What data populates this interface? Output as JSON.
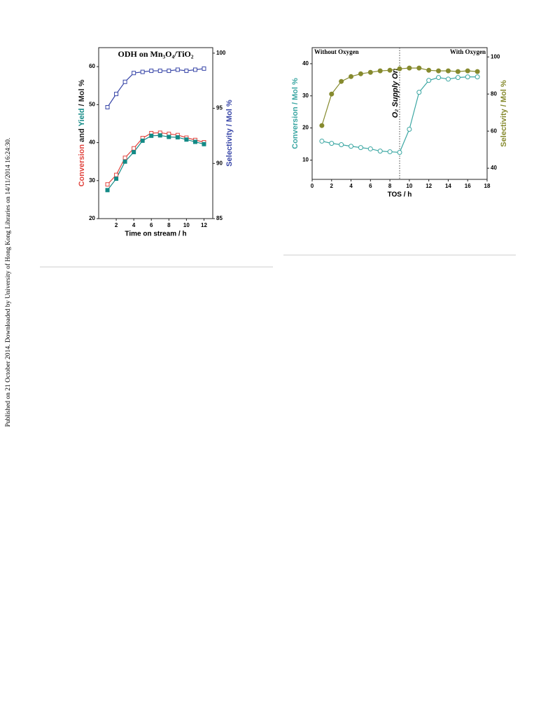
{
  "sidebar": "Published on 21 October 2014. Downloaded by University of Hong Kong Libraries on 14/11/2014 16:24:30.",
  "chart_data": [
    {
      "type": "line",
      "title": "ODH on Mn₃O₄/TiO₂",
      "xlabel": "Time on stream / h",
      "ylabel": [
        "Conversion",
        "and",
        "Yield",
        "/ Mol %"
      ],
      "y2label": "Selectivity / Mol %",
      "x": [
        1,
        2,
        3,
        4,
        5,
        6,
        7,
        8,
        9,
        10,
        11,
        12
      ],
      "xlim": [
        0,
        13
      ],
      "xticks": [
        2,
        4,
        6,
        8,
        10,
        12
      ],
      "ylim": [
        20,
        65
      ],
      "yticks": [
        20,
        30,
        40,
        50,
        60
      ],
      "y2lim": [
        85,
        100.5
      ],
      "y2ticks": [
        85,
        90,
        95,
        100
      ],
      "series": [
        {
          "name": "Conversion",
          "color": "#e0453f",
          "marker": "open-square",
          "values": [
            29,
            31.5,
            36,
            38.5,
            41.2,
            42.5,
            42.6,
            42.3,
            42,
            41.3,
            40.7,
            40.1
          ]
        },
        {
          "name": "Yield",
          "color": "#138a86",
          "marker": "filled-square",
          "values": [
            27.5,
            30.5,
            35,
            37.5,
            40.5,
            41.8,
            41.9,
            41.5,
            41.4,
            40.8,
            40.2,
            39.6
          ]
        },
        {
          "name": "Selectivity",
          "color": "#3846a8",
          "marker": "open-square",
          "axis": "y2",
          "values": [
            95.1,
            96.3,
            97.4,
            98.2,
            98.3,
            98.4,
            98.4,
            98.4,
            98.5,
            98.4,
            98.5,
            98.6
          ]
        }
      ]
    },
    {
      "type": "line",
      "xlabel": "TOS / h",
      "ylabel": "Conversion / Mol %",
      "y2label": "Selectivity / Mol %",
      "annotations": [
        "Without Oxygen",
        "With Oxygen",
        "O₂ Supply On"
      ],
      "divider_x": 9,
      "x": [
        1,
        2,
        3,
        4,
        5,
        6,
        7,
        8,
        9,
        10,
        11,
        12,
        13,
        14,
        15,
        16,
        17
      ],
      "xlim": [
        0,
        18
      ],
      "xticks": [
        0,
        2,
        4,
        6,
        8,
        10,
        12,
        14,
        16,
        18
      ],
      "ylim": [
        4,
        45
      ],
      "yticks": [
        10,
        20,
        30,
        40
      ],
      "y2lim": [
        34,
        105
      ],
      "y2ticks": [
        40,
        60,
        80,
        100
      ],
      "series": [
        {
          "name": "Conversion",
          "color": "#3aa6a2",
          "marker": "open-circle",
          "values": [
            15.9,
            15.2,
            14.8,
            14.3,
            13.9,
            13.5,
            12.8,
            12.6,
            12.4,
            19.6,
            31.1,
            34.8,
            35.7,
            35.2,
            35.7,
            35.9,
            35.9
          ]
        },
        {
          "name": "Selectivity",
          "color": "#868a2e",
          "marker": "filled-circle",
          "axis": "y2",
          "values": [
            63,
            80,
            86.8,
            89.4,
            90.9,
            91.7,
            92.5,
            92.8,
            93.6,
            94,
            94,
            92.8,
            92.5,
            92.5,
            92.1,
            92.5,
            92.1
          ]
        }
      ]
    }
  ]
}
